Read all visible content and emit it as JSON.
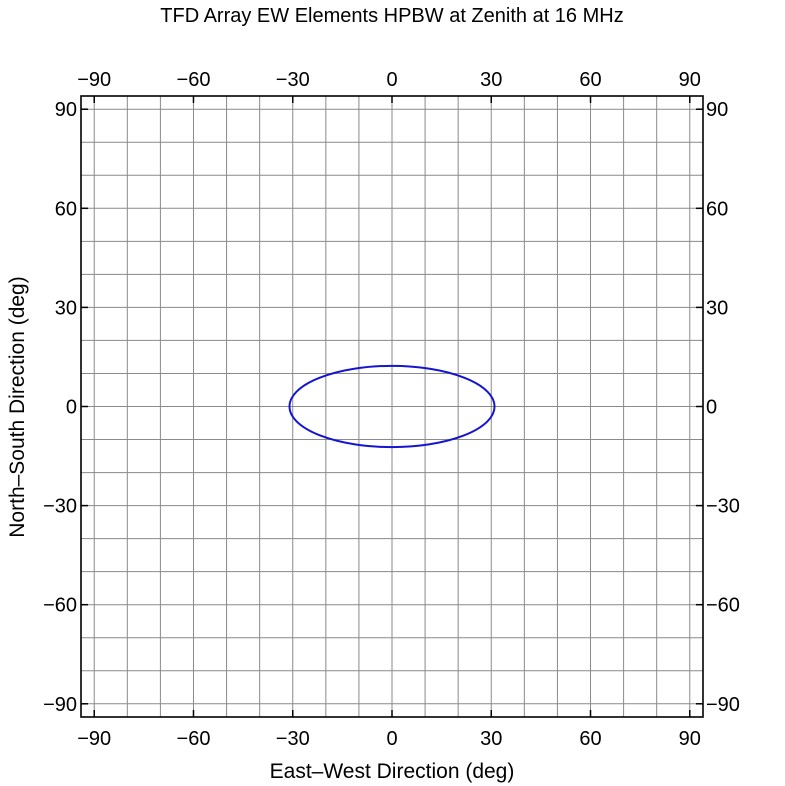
{
  "chart_data": {
    "type": "scatter",
    "title": "TFD Array EW Elements HPBW at Zenith at 16 MHz",
    "xlabel": "East–West Direction (deg)",
    "ylabel": "North–South Direction (deg)",
    "xlim": [
      -94,
      94
    ],
    "ylim": [
      -94,
      94
    ],
    "xticks": [
      -90,
      -60,
      -30,
      0,
      30,
      60,
      90
    ],
    "yticks": [
      -90,
      -60,
      -30,
      0,
      30,
      60,
      90
    ],
    "xtick_labels": [
      "−90",
      "−60",
      "−30",
      "0",
      "30",
      "60",
      "90"
    ],
    "ytick_labels": [
      "−90",
      "−60",
      "−30",
      "0",
      "30",
      "60",
      "90"
    ],
    "grid": true,
    "grid_step": 10,
    "series": [
      {
        "shape": "ellipse",
        "center": [
          0,
          0
        ],
        "semi_axis_x": 31,
        "semi_axis_y": 12.3,
        "color": "#1515d0"
      }
    ]
  }
}
